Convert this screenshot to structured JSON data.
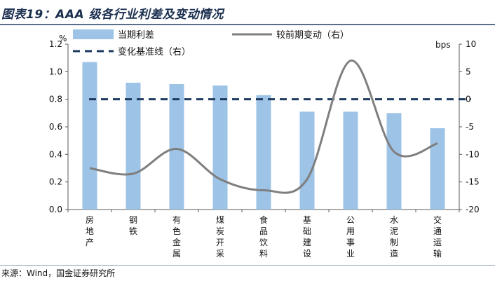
{
  "title": "图表19：AAA 级各行业利差及变动情况",
  "source": "来源：Wind，国金证券研究所",
  "colors": {
    "bar": "#9dc3e6",
    "line": "#7f7f7f",
    "baseline": "#1f3a5f",
    "title": "#1b2f4f"
  },
  "chart_data": {
    "type": "bar",
    "categories": [
      "房地产",
      "钢铁",
      "有色金属",
      "煤炭开采",
      "食品饮料",
      "基础建设",
      "公用事业",
      "水泥制造",
      "交通运输"
    ],
    "series": [
      {
        "name": "当期利差",
        "type": "bar",
        "axis": "left",
        "values": [
          1.07,
          0.92,
          0.91,
          0.9,
          0.83,
          0.71,
          0.71,
          0.7,
          0.59
        ]
      },
      {
        "name": "较前期变动（右）",
        "type": "line",
        "axis": "right",
        "smooth": true,
        "values": [
          -12.5,
          -13.5,
          -9,
          -14.5,
          -16.5,
          -14.5,
          7,
          -9.5,
          -8
        ]
      },
      {
        "name": "变化基准线（右）",
        "type": "line",
        "axis": "right",
        "style": "dashed",
        "values": [
          0,
          0,
          0,
          0,
          0,
          0,
          0,
          0,
          0
        ]
      }
    ],
    "y_left": {
      "unit": "%",
      "min": 0,
      "max": 1.2,
      "ticks": [
        "0.0",
        "0.2",
        "0.4",
        "0.6",
        "0.8",
        "1.0",
        "1.2"
      ]
    },
    "y_right": {
      "unit": "bps",
      "min": -20,
      "max": 10,
      "ticks": [
        "-20",
        "-15",
        "-10",
        "-5",
        "0",
        "5",
        "10"
      ]
    },
    "legend_position": "top",
    "grid": false
  }
}
